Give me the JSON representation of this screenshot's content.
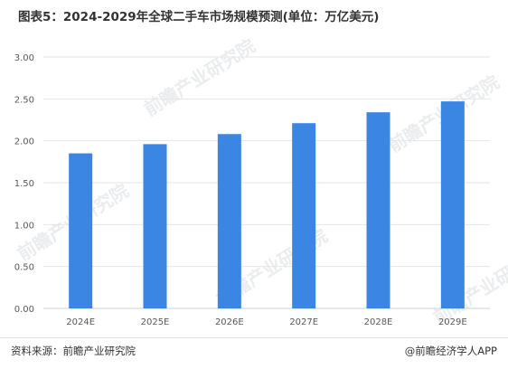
{
  "title": "图表5：2024-2029年全球二手车市场规模预测(单位：万亿美元)",
  "footer": {
    "source": "资料来源：前瞻产业研究院",
    "brand": "@前瞻经济学人APP"
  },
  "watermark": "前瞻产业研究院",
  "colors": {
    "bar": "#3b86e3",
    "grid": "#e6e6e6",
    "axis": "#d0d0d0",
    "tick_text": "#595959"
  },
  "chart_data": {
    "type": "bar",
    "categories": [
      "2024E",
      "2025E",
      "2026E",
      "2027E",
      "2028E",
      "2029E"
    ],
    "values": [
      1.85,
      1.96,
      2.08,
      2.21,
      2.34,
      2.47
    ],
    "yticks": [
      "0.00",
      "0.50",
      "1.00",
      "1.50",
      "2.00",
      "2.50",
      "3.00"
    ],
    "ylim": [
      0,
      3
    ],
    "grid": true,
    "xlabel": "",
    "ylabel": "",
    "legend": "none"
  }
}
